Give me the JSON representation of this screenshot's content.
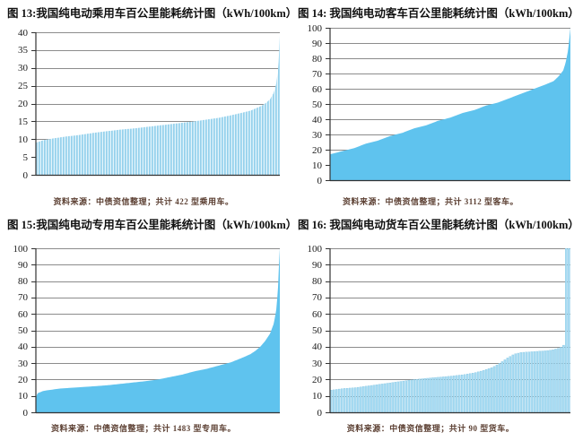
{
  "page": {
    "background": "#ffffff"
  },
  "chart_data": [
    {
      "type": "bar",
      "title": "图 13:我国纯电动乘用车百公里能耗统计图（kWh/100km）",
      "caption": "资料来源：中债资信整理；共计 422 型乘用车。",
      "unit": "kWh/100km",
      "n_bars": 422,
      "style": "striped",
      "ylim": [
        0,
        40
      ],
      "yticks": [
        0,
        5,
        10,
        15,
        20,
        25,
        30,
        35,
        40
      ],
      "grid": "horizontal",
      "legend": "none",
      "profile": [
        [
          0,
          9
        ],
        [
          0.03,
          9.7
        ],
        [
          0.07,
          10.2
        ],
        [
          0.12,
          10.7
        ],
        [
          0.18,
          11.2
        ],
        [
          0.25,
          11.9
        ],
        [
          0.3,
          12.3
        ],
        [
          0.35,
          12.7
        ],
        [
          0.4,
          13
        ],
        [
          0.45,
          13.4
        ],
        [
          0.5,
          13.8
        ],
        [
          0.55,
          14.2
        ],
        [
          0.6,
          14.6
        ],
        [
          0.65,
          15
        ],
        [
          0.7,
          15.5
        ],
        [
          0.75,
          16
        ],
        [
          0.8,
          16.7
        ],
        [
          0.85,
          17.5
        ],
        [
          0.88,
          18
        ],
        [
          0.9,
          18.6
        ],
        [
          0.92,
          19.2
        ],
        [
          0.94,
          20
        ],
        [
          0.96,
          21.2
        ],
        [
          0.975,
          23
        ],
        [
          0.985,
          25.5
        ],
        [
          0.992,
          29
        ],
        [
          0.996,
          33
        ],
        [
          1,
          39
        ]
      ],
      "colors": {
        "bar_fill": "#a8dcf3",
        "bar_edge": "#7fc3e2",
        "grid": "#8c8c8c",
        "axis": "#333333"
      }
    },
    {
      "type": "bar",
      "title": "图 14: 我国纯电动客车百公里能耗统计图（kWh/100km）",
      "caption": "资料来源：中债资信整理；共计 3112 型客车。",
      "unit": "kWh/100km",
      "n_bars": 3112,
      "style": "solid",
      "ylim": [
        0,
        100
      ],
      "yticks": [
        0,
        10,
        20,
        30,
        40,
        50,
        60,
        70,
        80,
        90,
        100
      ],
      "grid": "horizontal",
      "legend": "none",
      "profile": [
        [
          0,
          17
        ],
        [
          0.05,
          19
        ],
        [
          0.1,
          21
        ],
        [
          0.15,
          24
        ],
        [
          0.2,
          26
        ],
        [
          0.25,
          29
        ],
        [
          0.3,
          31
        ],
        [
          0.35,
          34
        ],
        [
          0.4,
          36
        ],
        [
          0.45,
          39
        ],
        [
          0.5,
          41
        ],
        [
          0.55,
          44
        ],
        [
          0.6,
          46
        ],
        [
          0.65,
          49
        ],
        [
          0.7,
          51
        ],
        [
          0.75,
          54
        ],
        [
          0.8,
          57
        ],
        [
          0.85,
          60
        ],
        [
          0.9,
          63
        ],
        [
          0.93,
          65
        ],
        [
          0.95,
          68
        ],
        [
          0.97,
          72
        ],
        [
          0.98,
          77
        ],
        [
          0.99,
          85
        ],
        [
          0.995,
          92
        ],
        [
          1,
          100
        ]
      ],
      "colors": {
        "bar_fill": "#5fc3ee",
        "bar_edge": "#54b8e6",
        "grid": "#8c8c8c",
        "axis": "#333333"
      }
    },
    {
      "type": "bar",
      "title": "图 15:我国纯电动专用车百公里能耗统计图（kWh/100km）",
      "caption": "资料来源：中债资信整理；共计 1483 型专用车。",
      "unit": "kWh/100km",
      "n_bars": 1483,
      "style": "solid",
      "ylim": [
        0,
        100
      ],
      "yticks": [
        0,
        10,
        20,
        30,
        40,
        50,
        60,
        70,
        80,
        90,
        100
      ],
      "grid": "horizontal",
      "legend": "none",
      "profile": [
        [
          0,
          8
        ],
        [
          0.005,
          11.5
        ],
        [
          0.03,
          13
        ],
        [
          0.05,
          13.5
        ],
        [
          0.1,
          14.5
        ],
        [
          0.15,
          15
        ],
        [
          0.2,
          15.5
        ],
        [
          0.25,
          16
        ],
        [
          0.3,
          16.6
        ],
        [
          0.35,
          17.4
        ],
        [
          0.4,
          18.2
        ],
        [
          0.45,
          19
        ],
        [
          0.5,
          20
        ],
        [
          0.55,
          21.5
        ],
        [
          0.6,
          23
        ],
        [
          0.65,
          25
        ],
        [
          0.7,
          26.5
        ],
        [
          0.75,
          28.5
        ],
        [
          0.8,
          30.5
        ],
        [
          0.85,
          33.5
        ],
        [
          0.88,
          35.5
        ],
        [
          0.9,
          37.5
        ],
        [
          0.92,
          40
        ],
        [
          0.94,
          43.5
        ],
        [
          0.96,
          48
        ],
        [
          0.975,
          54
        ],
        [
          0.985,
          62
        ],
        [
          0.992,
          74
        ],
        [
          0.996,
          88
        ],
        [
          1,
          100
        ]
      ],
      "colors": {
        "bar_fill": "#5fc3ee",
        "bar_edge": "#54b8e6",
        "grid": "#8c8c8c",
        "axis": "#333333"
      }
    },
    {
      "type": "bar",
      "title": "图 16: 我国纯电动货车百公里能耗统计图（kWh/100km）",
      "caption": "资料来源：中债资信整理；共计 90 型货车。",
      "unit": "kWh/100km",
      "n_bars": 90,
      "style": "striped",
      "ylim": [
        0,
        100
      ],
      "yticks": [
        0,
        10,
        20,
        30,
        40,
        50,
        60,
        70,
        80,
        90,
        100
      ],
      "grid": "horizontal",
      "legend": "none",
      "profile": [
        [
          0,
          13.5
        ],
        [
          0.05,
          14.5
        ],
        [
          0.1,
          15
        ],
        [
          0.15,
          16
        ],
        [
          0.2,
          17
        ],
        [
          0.25,
          18
        ],
        [
          0.3,
          19
        ],
        [
          0.35,
          20
        ],
        [
          0.42,
          21
        ],
        [
          0.5,
          22
        ],
        [
          0.56,
          23
        ],
        [
          0.6,
          24
        ],
        [
          0.64,
          25.5
        ],
        [
          0.68,
          27.5
        ],
        [
          0.71,
          30
        ],
        [
          0.74,
          33
        ],
        [
          0.77,
          35.5
        ],
        [
          0.8,
          36.5
        ],
        [
          0.85,
          37
        ],
        [
          0.9,
          37.5
        ],
        [
          0.93,
          38
        ],
        [
          0.955,
          39
        ],
        [
          0.972,
          40
        ],
        [
          0.978,
          41
        ],
        [
          0.984,
          100
        ],
        [
          1,
          100
        ]
      ],
      "colors": {
        "bar_fill": "#a8dcf3",
        "bar_edge": "#7fc3e2",
        "grid": "#8c8c8c",
        "axis": "#333333"
      }
    }
  ]
}
